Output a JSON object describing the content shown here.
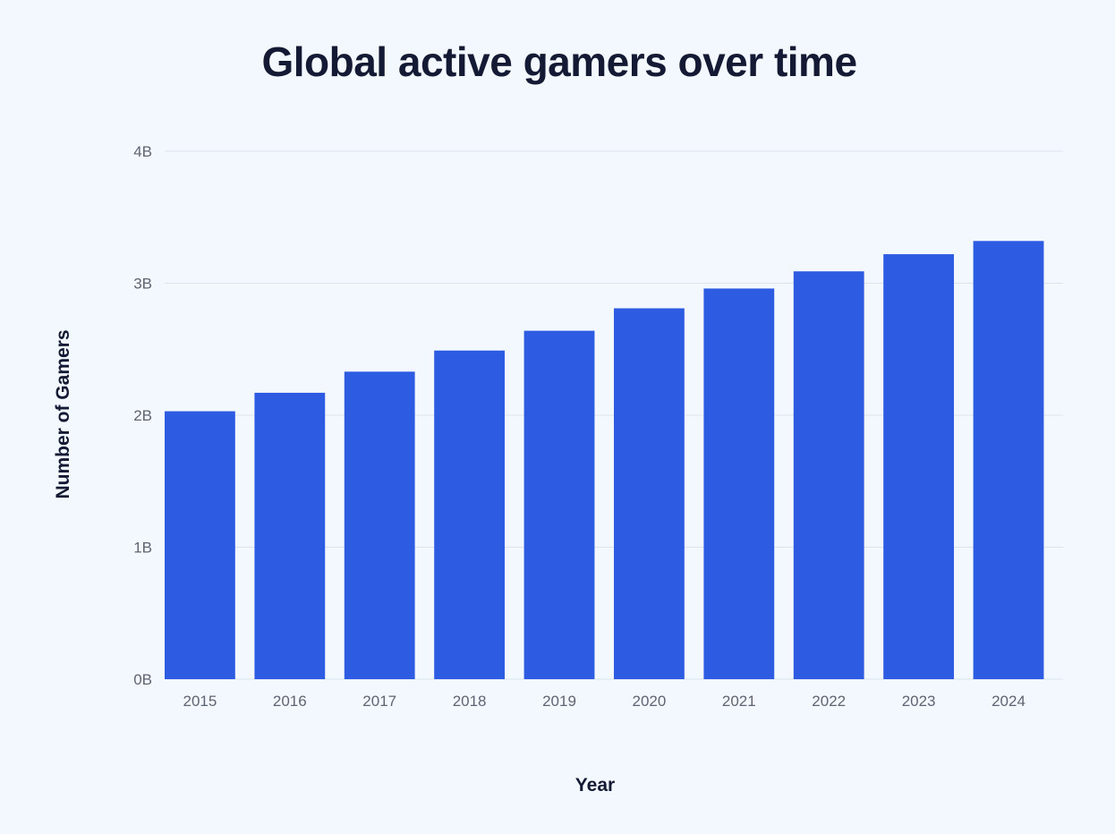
{
  "chart_data": {
    "type": "bar",
    "title": "Global active gamers over time",
    "xlabel": "Year",
    "ylabel": "Number of Gamers",
    "categories": [
      "2015",
      "2016",
      "2017",
      "2018",
      "2019",
      "2020",
      "2021",
      "2022",
      "2023",
      "2024"
    ],
    "values": [
      2.03,
      2.17,
      2.33,
      2.49,
      2.64,
      2.81,
      2.96,
      3.09,
      3.22,
      3.32
    ],
    "value_unit": "billions",
    "ylim": [
      0,
      4
    ],
    "yticks": [
      0,
      1,
      2,
      3,
      4
    ],
    "ytick_labels": [
      "0B",
      "1B",
      "2B",
      "3B",
      "4B"
    ],
    "grid": true,
    "legend": "none",
    "colors": {
      "bar": "#2d5ce3",
      "gridline": "#dde3ec",
      "background": "#f3f8fe"
    }
  }
}
